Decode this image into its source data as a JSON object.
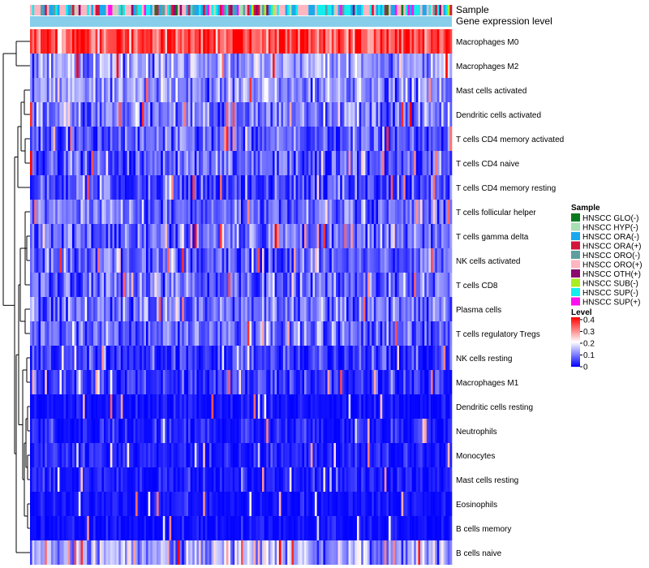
{
  "chart_data": {
    "type": "heatmap",
    "title": "",
    "annotation_tracks": [
      "Sample",
      "Gene expression level"
    ],
    "rows": [
      "Macrophages M0",
      "Macrophages M2",
      "Mast cells activated",
      "Dendritic cells activated",
      "T cells CD4 memory activated",
      "T cells CD4 naive",
      "T cells CD4 memory resting",
      "T cells follicular helper",
      "T cells gamma delta",
      "NK cells activated",
      "T cells CD8",
      "Plasma cells",
      "T cells regulatory  Tregs",
      "NK cells resting",
      "Macrophages M1",
      "Dendritic cells resting",
      "Neutrophils",
      "Monocytes",
      "Mast cells resting",
      "Eosinophils",
      "B cells memory",
      "B cells naive"
    ],
    "row_mean_levels": [
      0.36,
      0.13,
      0.12,
      0.1,
      0.07,
      0.07,
      0.05,
      0.09,
      0.09,
      0.08,
      0.08,
      0.09,
      0.08,
      0.04,
      0.04,
      0.01,
      0.02,
      0.02,
      0.02,
      0.01,
      0.01,
      0.14
    ],
    "row_spread": [
      0.06,
      0.05,
      0.05,
      0.05,
      0.05,
      0.05,
      0.05,
      0.05,
      0.05,
      0.05,
      0.05,
      0.05,
      0.05,
      0.04,
      0.04,
      0.02,
      0.03,
      0.03,
      0.03,
      0.02,
      0.02,
      0.06
    ],
    "n_samples": 200,
    "color_scale": {
      "title": "Level",
      "ticks": [
        "0.4",
        "0.3",
        "0.2",
        "0.1",
        "0"
      ],
      "tick_values": [
        0.4,
        0.3,
        0.2,
        0.1,
        0
      ],
      "range": [
        0,
        0.42
      ],
      "colors": [
        "#0000ff",
        "#ffffff",
        "#ff0000"
      ]
    },
    "sample_legend": {
      "title": "Sample",
      "entries": [
        {
          "label": "HNSCC GLO(-)",
          "color": "#0a7a1e"
        },
        {
          "label": "HNSCC HYP(-)",
          "color": "#a7e0b4"
        },
        {
          "label": "HNSCC ORA(-)",
          "color": "#1aa9ee"
        },
        {
          "label": "HNSCC ORA(+)",
          "color": "#d2143c"
        },
        {
          "label": "HNSCC ORO(-)",
          "color": "#5f9ea0"
        },
        {
          "label": "HNSCC ORO(+)",
          "color": "#ffb6c1"
        },
        {
          "label": "HNSCC OTH(+)",
          "color": "#8b0a6e"
        },
        {
          "label": "HNSCC SUB(-)",
          "color": "#aaee22"
        },
        {
          "label": "HNSCC SUP(-)",
          "color": "#12eeee"
        },
        {
          "label": "HNSCC SUP(+)",
          "color": "#ff10ee"
        }
      ]
    },
    "gene_expression_track_color": "#87ceeb",
    "dendrogram": "row clustering (left)"
  }
}
